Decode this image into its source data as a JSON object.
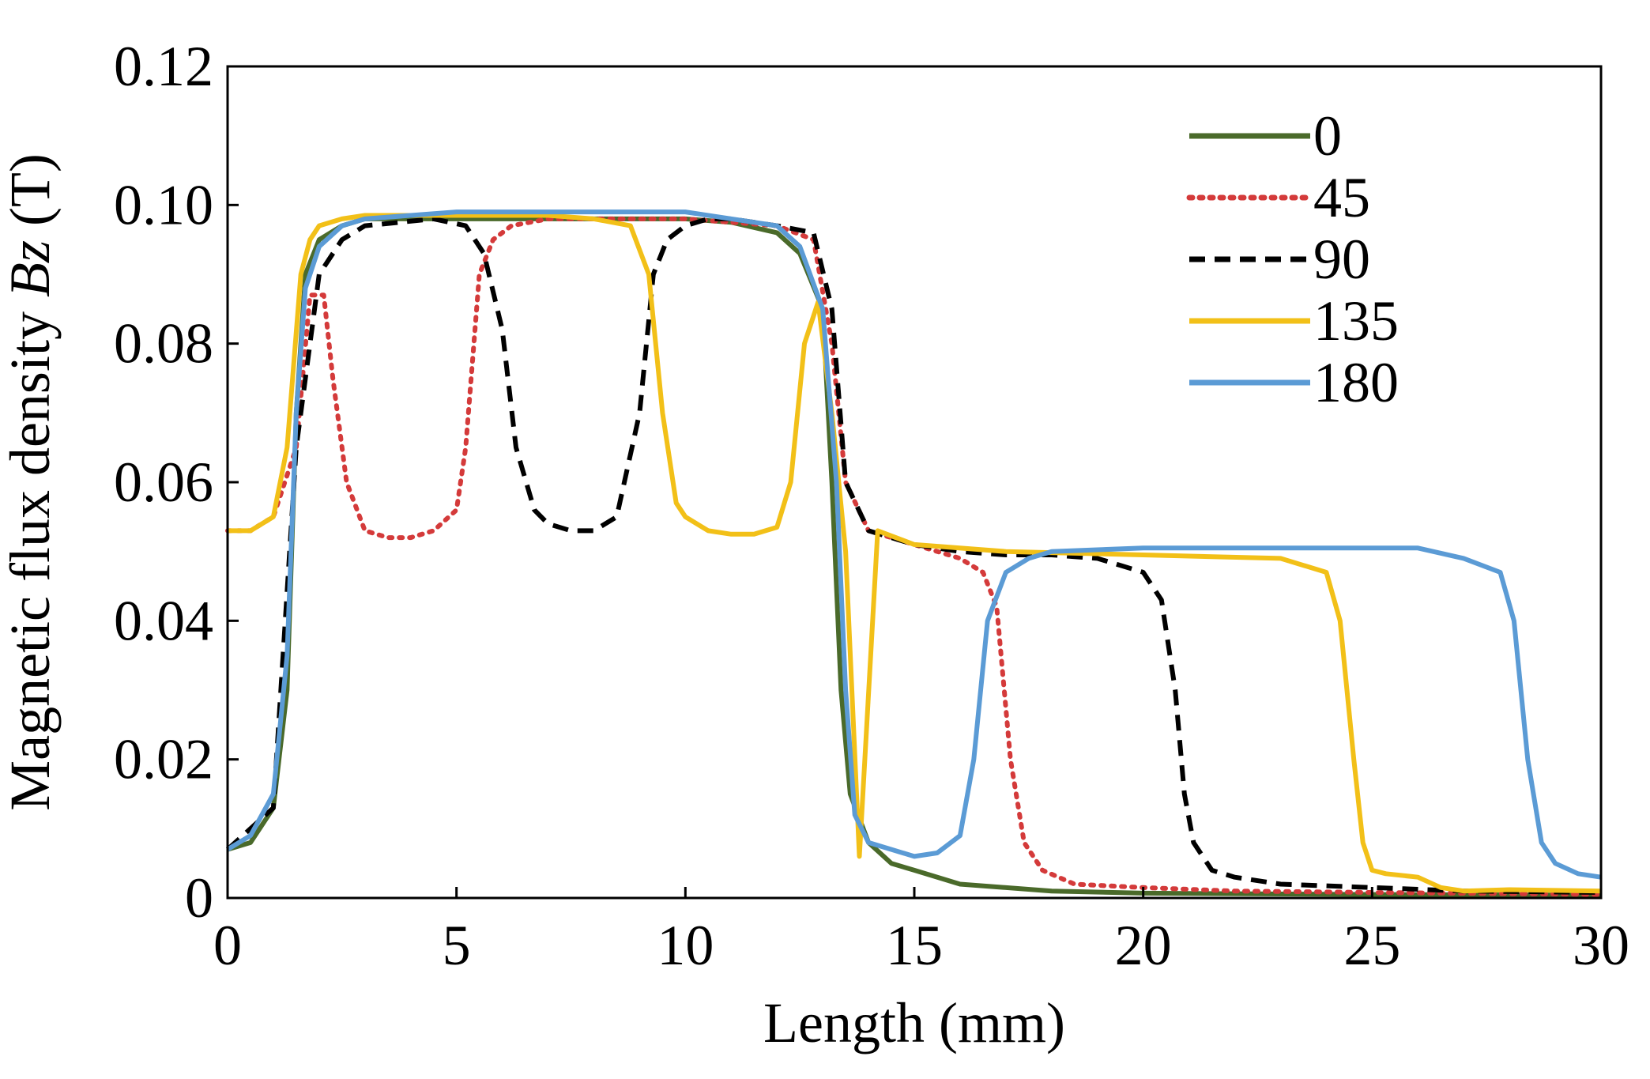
{
  "chart_data": {
    "type": "line",
    "title": "",
    "xlabel": "Length (mm)",
    "ylabel_prefix": "Magnetic flux density ",
    "ylabel_var": "Bz",
    "ylabel_suffix": " (T)",
    "xlim": [
      0,
      30
    ],
    "ylim": [
      0,
      0.12
    ],
    "xticks": [
      0,
      5,
      10,
      15,
      20,
      25,
      30
    ],
    "yticks": [
      0,
      0.02,
      0.04,
      0.06,
      0.08,
      0.1,
      0.12
    ],
    "xtick_labels": [
      "0",
      "5",
      "10",
      "15",
      "20",
      "25",
      "30"
    ],
    "ytick_labels": [
      "0",
      "0.02",
      "0.04",
      "0.06",
      "0.08",
      "0.10",
      "0.12"
    ],
    "grid": false,
    "legend_position": "top-right",
    "series": [
      {
        "name": "0",
        "color": "#4a6a2a",
        "style": "solid",
        "x": [
          0,
          0.5,
          1.0,
          1.3,
          1.5,
          1.7,
          2.0,
          2.5,
          3,
          4,
          6,
          8,
          10,
          11,
          12,
          12.5,
          13.0,
          13.2,
          13.4,
          13.6,
          14.0,
          14.5,
          15,
          16,
          18,
          20,
          25,
          30
        ],
        "y": [
          0.007,
          0.008,
          0.013,
          0.03,
          0.07,
          0.09,
          0.095,
          0.097,
          0.098,
          0.098,
          0.098,
          0.098,
          0.098,
          0.0975,
          0.096,
          0.093,
          0.085,
          0.06,
          0.03,
          0.015,
          0.008,
          0.005,
          0.004,
          0.002,
          0.001,
          0.0007,
          0.0005,
          0.0004
        ]
      },
      {
        "name": "45",
        "color": "#d43a3a",
        "style": "dotted",
        "x": [
          0,
          0.5,
          1.0,
          1.5,
          1.8,
          2.1,
          2.3,
          2.6,
          3.0,
          3.5,
          4.0,
          4.5,
          5.0,
          5.2,
          5.5,
          5.8,
          6.2,
          7,
          8,
          10,
          12,
          12.8,
          13.2,
          13.5,
          14,
          15,
          16,
          16.5,
          16.8,
          17.1,
          17.4,
          17.8,
          18.5,
          20,
          22,
          25,
          30
        ],
        "y": [
          0.053,
          0.053,
          0.055,
          0.065,
          0.087,
          0.087,
          0.075,
          0.06,
          0.053,
          0.052,
          0.052,
          0.053,
          0.056,
          0.065,
          0.09,
          0.095,
          0.097,
          0.098,
          0.098,
          0.098,
          0.097,
          0.095,
          0.08,
          0.06,
          0.053,
          0.051,
          0.049,
          0.047,
          0.042,
          0.02,
          0.008,
          0.004,
          0.002,
          0.0015,
          0.001,
          0.0008,
          0.0005
        ]
      },
      {
        "name": "90",
        "color": "#000000",
        "style": "dashed",
        "x": [
          0,
          1.0,
          1.5,
          2.0,
          2.5,
          3.0,
          4.5,
          5.2,
          5.6,
          6.0,
          6.3,
          6.7,
          7.0,
          7.5,
          8.0,
          8.5,
          9.0,
          9.3,
          9.6,
          10.0,
          10.5,
          11,
          12,
          12.8,
          13.2,
          13.5,
          14,
          15,
          16,
          17,
          18,
          19,
          20,
          20.4,
          20.7,
          20.9,
          21.1,
          21.5,
          22,
          23,
          25,
          27,
          30
        ],
        "y": [
          0.007,
          0.013,
          0.065,
          0.09,
          0.095,
          0.097,
          0.098,
          0.097,
          0.093,
          0.082,
          0.065,
          0.056,
          0.054,
          0.053,
          0.053,
          0.055,
          0.07,
          0.09,
          0.095,
          0.097,
          0.098,
          0.098,
          0.097,
          0.096,
          0.085,
          0.06,
          0.053,
          0.051,
          0.05,
          0.0495,
          0.0495,
          0.049,
          0.047,
          0.043,
          0.03,
          0.015,
          0.008,
          0.004,
          0.003,
          0.002,
          0.0015,
          0.001,
          0.0008
        ]
      },
      {
        "name": "135",
        "color": "#f2c018",
        "style": "solid",
        "x": [
          0,
          0.5,
          1.0,
          1.3,
          1.6,
          1.8,
          2.0,
          2.5,
          3,
          5,
          7,
          8,
          8.8,
          9.2,
          9.5,
          9.8,
          10.0,
          10.5,
          11,
          11.5,
          12.0,
          12.3,
          12.6,
          12.9,
          13.2,
          13.5,
          13.8,
          14.2,
          15,
          17,
          20,
          23,
          24.0,
          24.3,
          24.6,
          24.8,
          25.0,
          25.3,
          26,
          26.5,
          27,
          28,
          30
        ],
        "y": [
          0.053,
          0.053,
          0.055,
          0.065,
          0.09,
          0.095,
          0.097,
          0.098,
          0.0985,
          0.0985,
          0.0985,
          0.098,
          0.097,
          0.09,
          0.07,
          0.057,
          0.055,
          0.053,
          0.0525,
          0.0525,
          0.0535,
          0.06,
          0.08,
          0.086,
          0.07,
          0.05,
          0.006,
          0.053,
          0.051,
          0.05,
          0.0495,
          0.049,
          0.047,
          0.04,
          0.02,
          0.008,
          0.004,
          0.0035,
          0.003,
          0.0015,
          0.001,
          0.0012,
          0.001
        ]
      },
      {
        "name": "180",
        "color": "#5b9bd5",
        "style": "solid",
        "x": [
          0,
          0.5,
          1.0,
          1.3,
          1.5,
          1.7,
          2.0,
          2.5,
          3,
          5,
          8,
          10,
          12,
          12.5,
          13.0,
          13.3,
          13.5,
          13.7,
          14.0,
          14.5,
          15.0,
          15.5,
          16.0,
          16.3,
          16.6,
          17.0,
          17.5,
          18,
          20,
          24,
          26,
          27,
          27.8,
          28.1,
          28.4,
          28.7,
          29.0,
          29.5,
          30
        ],
        "y": [
          0.007,
          0.009,
          0.015,
          0.035,
          0.07,
          0.088,
          0.094,
          0.097,
          0.098,
          0.099,
          0.099,
          0.099,
          0.097,
          0.094,
          0.085,
          0.06,
          0.03,
          0.012,
          0.008,
          0.007,
          0.006,
          0.0065,
          0.009,
          0.02,
          0.04,
          0.047,
          0.049,
          0.05,
          0.0505,
          0.0505,
          0.0505,
          0.049,
          0.047,
          0.04,
          0.02,
          0.008,
          0.005,
          0.0035,
          0.003
        ]
      }
    ]
  }
}
